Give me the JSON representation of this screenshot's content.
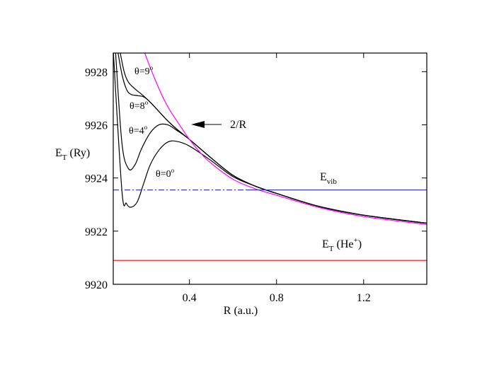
{
  "chart_data": {
    "type": "line",
    "xlabel": "R (a.u.)",
    "ylabel": "E",
    "ylabel_sub": "T",
    "ylabel_unit": "(Ry)",
    "xlim": [
      0.05,
      1.49
    ],
    "ylim": [
      9920,
      9928.7
    ],
    "xticks": [
      0.4,
      0.8,
      1.2
    ],
    "xtick_labels": [
      "0.4",
      "0.8",
      "1.2"
    ],
    "yticks": [
      9920,
      9922,
      9924,
      9926,
      9928
    ],
    "ytick_labels": [
      "9920",
      "9922",
      "9924",
      "9926",
      "9928"
    ],
    "grid": false,
    "legend": "none",
    "series": [
      {
        "name": "θ=0°",
        "color": "#000000",
        "x": [
          0.05,
          0.09,
          0.11,
          0.13,
          0.16,
          0.19,
          0.22,
          0.26,
          0.3,
          0.34,
          0.4,
          0.5,
          0.6,
          0.7,
          0.8,
          0.9,
          1.0,
          1.2,
          1.4,
          1.49
        ],
        "y": [
          9928.8,
          9923.5,
          9923.05,
          9922.9,
          9923.1,
          9923.8,
          9924.5,
          9925.05,
          9925.35,
          9925.38,
          9925.2,
          9924.65,
          9924.05,
          9923.7,
          9923.42,
          9923.15,
          9922.92,
          9922.6,
          9922.38,
          9922.3
        ]
      },
      {
        "name": "θ=4°",
        "color": "#000000",
        "x": [
          0.06,
          0.09,
          0.12,
          0.15,
          0.18,
          0.22,
          0.26,
          0.3,
          0.34,
          0.4,
          0.5,
          0.6,
          0.7,
          0.8,
          1.0,
          1.2,
          1.49
        ],
        "y": [
          9928.8,
          9925.3,
          9924.35,
          9924.5,
          9925.1,
          9925.7,
          9926.0,
          9926.0,
          9925.8,
          9925.45,
          9924.75,
          9924.1,
          9923.7,
          9923.42,
          9922.92,
          9922.6,
          9922.3
        ]
      },
      {
        "name": "θ=8°",
        "color": "#000000",
        "x": [
          0.07,
          0.09,
          0.11,
          0.13,
          0.16,
          0.19,
          0.22,
          0.26,
          0.3,
          0.34,
          0.4,
          0.5,
          0.6,
          0.7,
          0.8,
          1.0,
          1.2,
          1.49
        ],
        "y": [
          9928.8,
          9927.9,
          9927.35,
          9927.15,
          9927.1,
          9927.05,
          9926.85,
          9926.5,
          9926.15,
          9925.85,
          9925.45,
          9924.75,
          9924.1,
          9923.7,
          9923.42,
          9922.92,
          9922.6,
          9922.3
        ]
      },
      {
        "name": "θ=9°",
        "color": "#000000",
        "x": [
          0.08,
          0.1,
          0.12,
          0.15,
          0.18,
          0.22,
          0.26,
          0.3,
          0.34,
          0.4,
          0.5,
          0.6,
          0.7,
          0.8,
          1.0,
          1.2,
          1.49
        ],
        "y": [
          9928.8,
          9928.0,
          9927.6,
          9927.35,
          9927.15,
          9926.85,
          9926.5,
          9926.15,
          9925.85,
          9925.45,
          9924.75,
          9924.1,
          9923.7,
          9923.42,
          9922.92,
          9922.6,
          9922.3
        ]
      },
      {
        "name": "2/R",
        "color": "#ff00ff",
        "x": [
          0.19,
          0.22,
          0.25,
          0.28,
          0.31,
          0.35,
          0.4,
          0.45,
          0.5,
          0.6,
          0.7,
          0.8,
          1.0,
          1.2,
          1.49
        ],
        "y": [
          9928.8,
          9928.15,
          9927.55,
          9927.0,
          9926.55,
          9926.05,
          9925.45,
          9924.95,
          9924.55,
          9923.95,
          9923.6,
          9923.35,
          9922.88,
          9922.55,
          9922.25
        ]
      },
      {
        "name": "E_vib",
        "color": "#3333cc",
        "dash": "dashdot",
        "x": [
          0.05,
          0.66
        ],
        "y": [
          9923.55,
          9923.55
        ]
      },
      {
        "name": "E_vib",
        "color": "#3333cc",
        "x": [
          0.66,
          1.49
        ],
        "y": [
          9923.55,
          9923.55
        ]
      },
      {
        "name": "E_T(He+)",
        "color": "#ff0000",
        "x": [
          0.05,
          1.49
        ],
        "y": [
          9920.9,
          9920.9
        ]
      }
    ],
    "annotations": {
      "theta9": "θ=9",
      "theta8": "θ=8",
      "theta4": "θ=4",
      "theta0": "θ=0",
      "degree": "o",
      "two_over_r": "2/R",
      "evib_main": "E",
      "evib_sub": "vib",
      "et_main": "E",
      "et_sub": "T",
      "et_paren": "(He",
      "et_sup": "+",
      "et_close": ")"
    }
  }
}
